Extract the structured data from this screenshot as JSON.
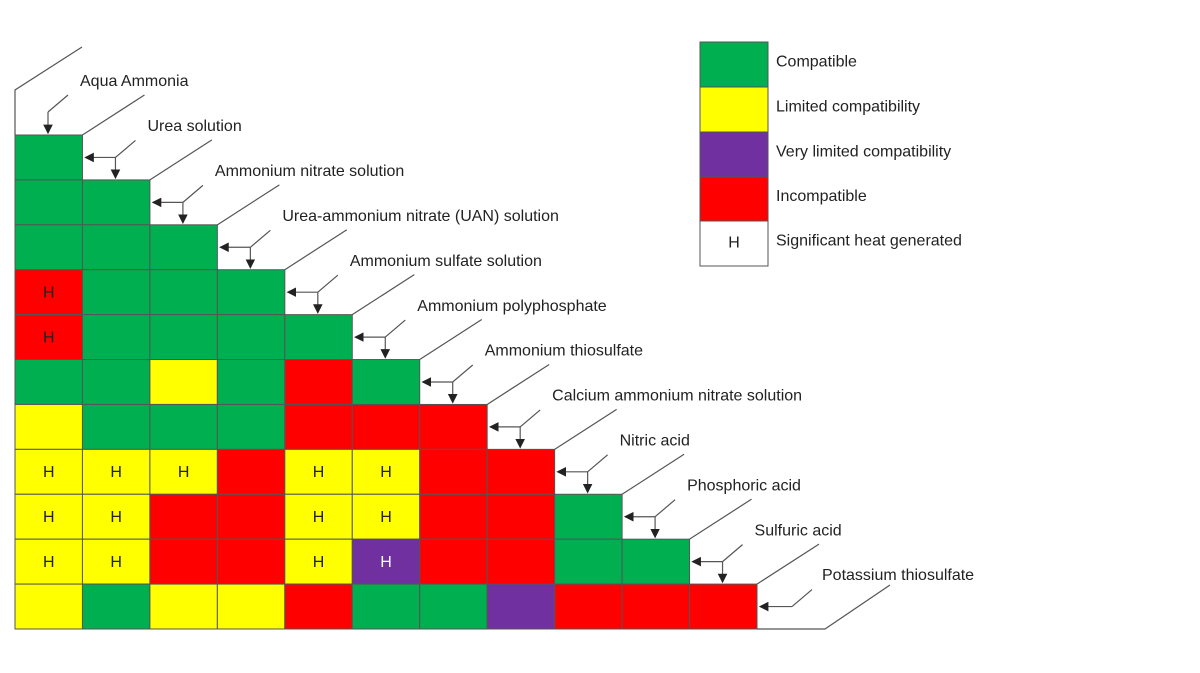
{
  "labels": [
    "Aqua Ammonia",
    "Urea solution",
    "Ammonium nitrate solution",
    "Urea-ammonium nitrate (UAN) solution",
    "Ammonium sulfate solution",
    "Ammonium polyphosphate",
    "Ammonium thiosulfate",
    "Calcium ammonium nitrate solution",
    "Nitric acid",
    "Phosphoric acid",
    "Sulfuric acid",
    "Potassium thiosulfate"
  ],
  "legend": [
    {
      "color": "#00b050",
      "label": "Compatible"
    },
    {
      "color": "#ffff00",
      "label": "Limited compatibility"
    },
    {
      "color": "#7030a0",
      "label": "Very limited compatibility"
    },
    {
      "color": "#ff0000",
      "label": "Incompatible"
    },
    {
      "symbol": "H",
      "label": "Significant heat generated"
    }
  ],
  "rows": [
    [
      {
        "k": 0
      }
    ],
    [
      {
        "k": 0
      },
      {
        "k": 0
      }
    ],
    [
      {
        "k": 0
      },
      {
        "k": 0
      },
      {
        "k": 0
      }
    ],
    [
      {
        "k": 3,
        "mark": "H"
      },
      {
        "k": 0
      },
      {
        "k": 0
      },
      {
        "k": 0
      }
    ],
    [
      {
        "k": 3,
        "mark": "H"
      },
      {
        "k": 0
      },
      {
        "k": 0
      },
      {
        "k": 0
      },
      {
        "k": 0
      }
    ],
    [
      {
        "k": 0
      },
      {
        "k": 0
      },
      {
        "k": 1
      },
      {
        "k": 0
      },
      {
        "k": 3
      },
      {
        "k": 0
      }
    ],
    [
      {
        "k": 1
      },
      {
        "k": 0
      },
      {
        "k": 0
      },
      {
        "k": 0
      },
      {
        "k": 3
      },
      {
        "k": 3
      },
      {
        "k": 3
      }
    ],
    [
      {
        "k": 1,
        "mark": "H"
      },
      {
        "k": 1,
        "mark": "H"
      },
      {
        "k": 1,
        "mark": "H"
      },
      {
        "k": 3
      },
      {
        "k": 1,
        "mark": "H"
      },
      {
        "k": 1,
        "mark": "H"
      },
      {
        "k": 3
      },
      {
        "k": 3
      }
    ],
    [
      {
        "k": 1,
        "mark": "H"
      },
      {
        "k": 1,
        "mark": "H"
      },
      {
        "k": 3
      },
      {
        "k": 3
      },
      {
        "k": 1,
        "mark": "H"
      },
      {
        "k": 1,
        "mark": "H"
      },
      {
        "k": 3
      },
      {
        "k": 3
      },
      {
        "k": 0
      }
    ],
    [
      {
        "k": 1,
        "mark": "H"
      },
      {
        "k": 1,
        "mark": "H"
      },
      {
        "k": 3
      },
      {
        "k": 3
      },
      {
        "k": 1,
        "mark": "H"
      },
      {
        "k": 2,
        "mark": "H"
      },
      {
        "k": 3
      },
      {
        "k": 3
      },
      {
        "k": 0
      },
      {
        "k": 0
      }
    ],
    [
      {
        "k": 1
      },
      {
        "k": 0
      },
      {
        "k": 1
      },
      {
        "k": 1
      },
      {
        "k": 3
      },
      {
        "k": 0
      },
      {
        "k": 0
      },
      {
        "k": 2
      },
      {
        "k": 3
      },
      {
        "k": 3
      },
      {
        "k": 3
      }
    ]
  ]
}
